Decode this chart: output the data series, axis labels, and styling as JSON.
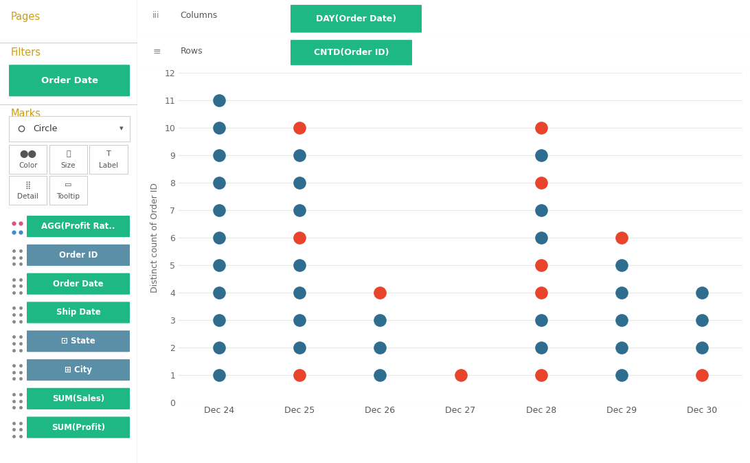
{
  "plot_points": [
    {
      "x": "Dec 24",
      "y": 11,
      "color": "dark"
    },
    {
      "x": "Dec 24",
      "y": 10,
      "color": "dark"
    },
    {
      "x": "Dec 24",
      "y": 9,
      "color": "dark"
    },
    {
      "x": "Dec 24",
      "y": 8,
      "color": "dark"
    },
    {
      "x": "Dec 24",
      "y": 7,
      "color": "dark"
    },
    {
      "x": "Dec 24",
      "y": 6,
      "color": "dark"
    },
    {
      "x": "Dec 24",
      "y": 5,
      "color": "dark"
    },
    {
      "x": "Dec 24",
      "y": 4,
      "color": "dark"
    },
    {
      "x": "Dec 24",
      "y": 3,
      "color": "dark"
    },
    {
      "x": "Dec 24",
      "y": 2,
      "color": "dark"
    },
    {
      "x": "Dec 24",
      "y": 1,
      "color": "dark"
    },
    {
      "x": "Dec 25",
      "y": 10,
      "color": "red"
    },
    {
      "x": "Dec 25",
      "y": 9,
      "color": "dark"
    },
    {
      "x": "Dec 25",
      "y": 8,
      "color": "dark"
    },
    {
      "x": "Dec 25",
      "y": 7,
      "color": "dark"
    },
    {
      "x": "Dec 25",
      "y": 6,
      "color": "red"
    },
    {
      "x": "Dec 25",
      "y": 5,
      "color": "dark"
    },
    {
      "x": "Dec 25",
      "y": 4,
      "color": "dark"
    },
    {
      "x": "Dec 25",
      "y": 3,
      "color": "dark"
    },
    {
      "x": "Dec 25",
      "y": 2,
      "color": "dark"
    },
    {
      "x": "Dec 25",
      "y": 1,
      "color": "red"
    },
    {
      "x": "Dec 26",
      "y": 4,
      "color": "red"
    },
    {
      "x": "Dec 26",
      "y": 3,
      "color": "dark"
    },
    {
      "x": "Dec 26",
      "y": 2,
      "color": "dark"
    },
    {
      "x": "Dec 26",
      "y": 1,
      "color": "dark"
    },
    {
      "x": "Dec 27",
      "y": 1,
      "color": "red"
    },
    {
      "x": "Dec 28",
      "y": 10,
      "color": "red"
    },
    {
      "x": "Dec 28",
      "y": 9,
      "color": "dark"
    },
    {
      "x": "Dec 28",
      "y": 8,
      "color": "red"
    },
    {
      "x": "Dec 28",
      "y": 7,
      "color": "dark"
    },
    {
      "x": "Dec 28",
      "y": 6,
      "color": "dark"
    },
    {
      "x": "Dec 28",
      "y": 5,
      "color": "red"
    },
    {
      "x": "Dec 28",
      "y": 4,
      "color": "red"
    },
    {
      "x": "Dec 28",
      "y": 3,
      "color": "dark"
    },
    {
      "x": "Dec 28",
      "y": 2,
      "color": "dark"
    },
    {
      "x": "Dec 28",
      "y": 1,
      "color": "red"
    },
    {
      "x": "Dec 29",
      "y": 6,
      "color": "red"
    },
    {
      "x": "Dec 29",
      "y": 5,
      "color": "dark"
    },
    {
      "x": "Dec 29",
      "y": 4,
      "color": "dark"
    },
    {
      "x": "Dec 29",
      "y": 3,
      "color": "dark"
    },
    {
      "x": "Dec 29",
      "y": 2,
      "color": "dark"
    },
    {
      "x": "Dec 29",
      "y": 1,
      "color": "dark"
    },
    {
      "x": "Dec 30",
      "y": 4,
      "color": "dark"
    },
    {
      "x": "Dec 30",
      "y": 3,
      "color": "dark"
    },
    {
      "x": "Dec 30",
      "y": 2,
      "color": "dark"
    },
    {
      "x": "Dec 30",
      "y": 1,
      "color": "red"
    }
  ],
  "x_labels": [
    "Dec 24",
    "Dec 25",
    "Dec 26",
    "Dec 27",
    "Dec 28",
    "Dec 29",
    "Dec 30"
  ],
  "y_ticks": [
    0,
    1,
    2,
    3,
    4,
    5,
    6,
    7,
    8,
    9,
    10,
    11,
    12
  ],
  "ylim": [
    0,
    12
  ],
  "ylabel": "Distinct count of Order ID",
  "dark_color": "#2e6d8e",
  "red_color": "#e8432b",
  "marker_size": 180,
  "grid_color": "#e8e8e8",
  "title_columns": "DAY(Order Date)",
  "title_rows": "CNTD(Order ID)",
  "green_pill": "#1db884",
  "blue_pill": "#5b8fa8",
  "marks_items": [
    "AGG(Profit Rat..",
    "Order ID",
    "Order Date",
    "Ship Date",
    "⊡ State",
    "⊞ City",
    "SUM(Sales)",
    "SUM(Profit)"
  ],
  "marks_colors": [
    "green",
    "blue",
    "green",
    "green",
    "blue",
    "blue",
    "green",
    "green"
  ],
  "sidebar_bg": "#f7f7f7",
  "header_bg": "#f5f5f5",
  "chart_bg": "#ffffff",
  "section_title_color": "#c8a020",
  "sidebar_text_color": "#444444",
  "border_color": "#d0d0d0"
}
